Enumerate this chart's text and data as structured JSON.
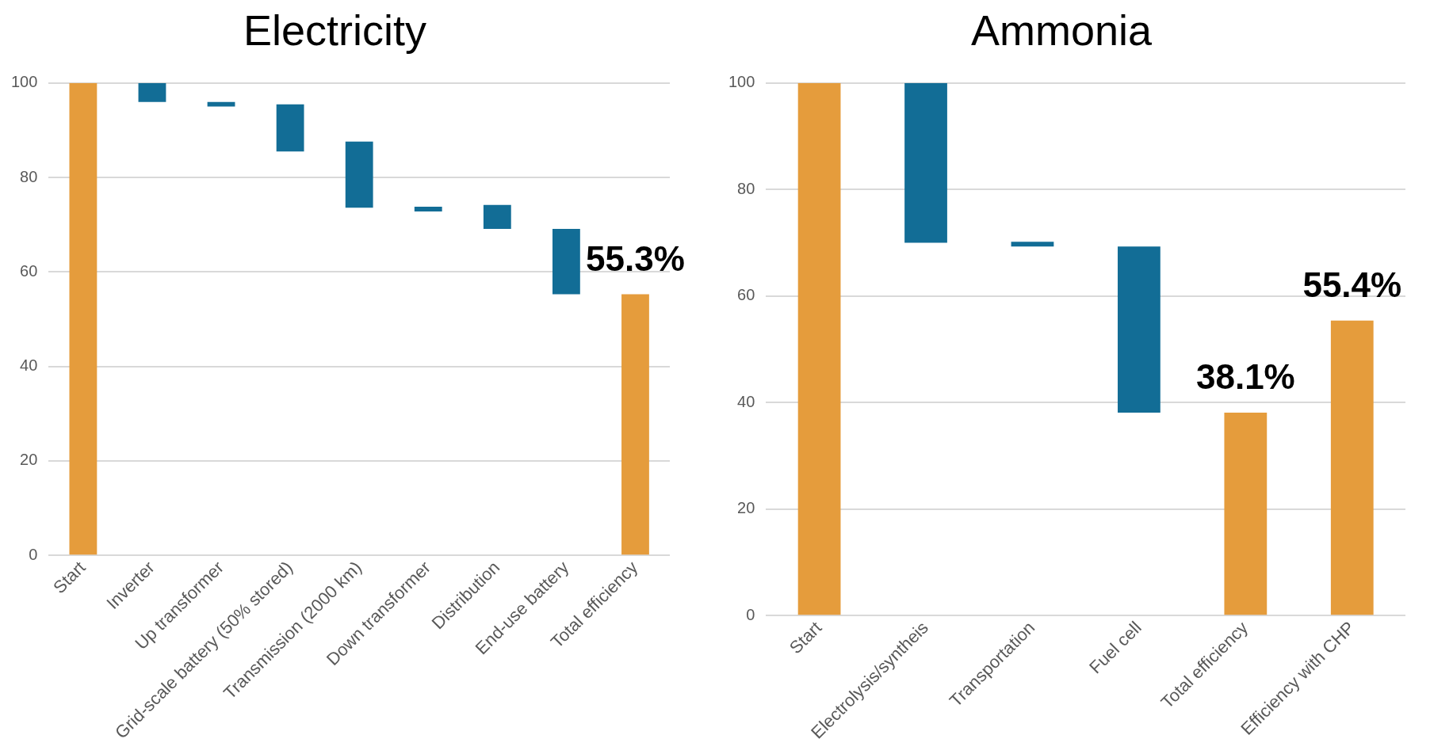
{
  "chart_data": [
    {
      "type": "bar",
      "title": "Electricity",
      "categories": [
        "Start",
        "Inverter",
        "Up transformer",
        "Grid-scale battery (50% stored)",
        "Transmission (2000 km)",
        "Down transformer",
        "Distribution",
        "End-use battery",
        "Total efficiency"
      ],
      "values": [
        100,
        4,
        1,
        10,
        14,
        1,
        5.1,
        13.8,
        55.3
      ],
      "base": [
        0,
        96,
        95,
        85.5,
        73.6,
        72.8,
        69.1,
        55.3,
        0
      ],
      "colors": [
        "#e59c3c",
        "#126d96",
        "#126d96",
        "#126d96",
        "#126d96",
        "#126d96",
        "#126d96",
        "#126d96",
        "#e59c3c"
      ],
      "value_labels": [
        null,
        null,
        null,
        null,
        null,
        null,
        null,
        null,
        "55.3%"
      ],
      "ylim": [
        0,
        100
      ],
      "yticks": [
        0,
        20,
        40,
        60,
        80,
        100
      ],
      "grid": "y",
      "legend": false
    },
    {
      "type": "bar",
      "title": "Ammonia",
      "categories": [
        "Start",
        "Electrolysis/syntheis",
        "Transportation",
        "Fuel cell",
        "Total efficiency",
        "Efficiency with CHP"
      ],
      "values": [
        100,
        30,
        0.9,
        31.2,
        38.1,
        55.4
      ],
      "base": [
        0,
        70,
        69.3,
        38.1,
        0,
        0
      ],
      "colors": [
        "#e59c3c",
        "#126d96",
        "#126d96",
        "#126d96",
        "#e59c3c",
        "#e59c3c"
      ],
      "value_labels": [
        null,
        null,
        null,
        null,
        "38.1%",
        "55.4%"
      ],
      "ylim": [
        0,
        100
      ],
      "yticks": [
        0,
        20,
        40,
        60,
        80,
        100
      ],
      "grid": "y",
      "legend": false
    }
  ]
}
